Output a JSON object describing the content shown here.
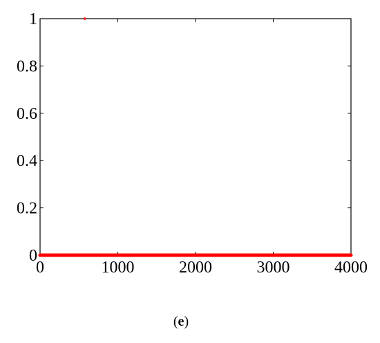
{
  "chart_data": {
    "type": "scatter",
    "title": "",
    "xlabel": "",
    "ylabel": "",
    "xlim": [
      0,
      4000
    ],
    "ylim": [
      0,
      1
    ],
    "x_ticks": [
      0,
      1000,
      2000,
      3000,
      4000
    ],
    "x_tick_labels": [
      "0",
      "1000",
      "2000",
      "3000",
      "4000"
    ],
    "y_ticks": [
      0,
      0.2,
      0.4,
      0.6,
      0.8,
      1
    ],
    "y_tick_labels": [
      "0",
      "0.2",
      "0.4",
      "0.6",
      "0.8",
      "1"
    ],
    "grid": false,
    "marker_color": "#ff0000",
    "points_at_one": [
      575
    ],
    "points_at_zero": {
      "from": 0,
      "to": 4000,
      "y": 0
    }
  },
  "caption": {
    "open": "(",
    "letter": "e",
    "close": ")"
  }
}
